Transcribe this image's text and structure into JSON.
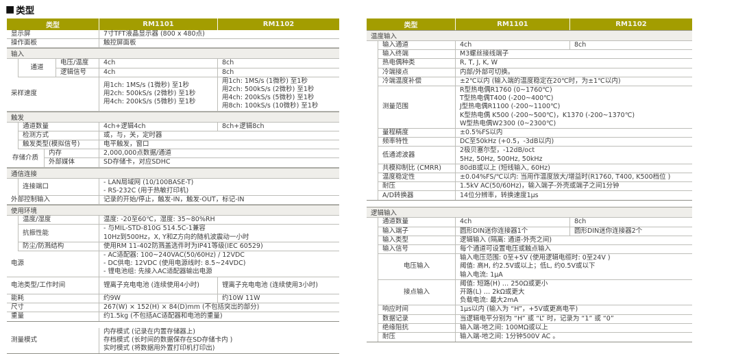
{
  "title": {
    "marker": "■",
    "text": "类型"
  },
  "colors": {
    "header_bg": "#a39d00",
    "header_text": "#f4f4ee",
    "section_bg": "#efeeea",
    "border": "#bdbdb8",
    "border_dark": "#8e8e86",
    "text": "#3b3b3b"
  },
  "tables": {
    "left_main": {
      "lw": 135,
      "v1": 173,
      "v2": 177,
      "ind": 17,
      "gw": 55,
      "header": [
        "类型",
        "RM1101",
        "RM1102"
      ],
      "rows": [
        {
          "l": "显示屏",
          "v": "7寸TFT液晶显示器 (800 x 480点)"
        },
        {
          "l": "操作面板",
          "v": "触控屏面板"
        },
        {
          "s": "输入"
        },
        {
          "g": "通道",
          "ind": 1,
          "sub": [
            {
              "l": "电压/温度",
              "v2": [
                "4ch",
                "8ch"
              ]
            },
            {
              "l": "逻辑信号",
              "v2": [
                "4ch",
                "8ch"
              ]
            }
          ]
        },
        {
          "l": "采样速度",
          "v2": [
            [
              "用1ch: 1MS/s (1微秒) 至1秒",
              "用2ch: 500kS/s (2微秒) 至1秒",
              "用4ch: 200kS/s (5微秒) 至1秒"
            ],
            [
              "用1ch: 1MS/s (1微秒) 至1秒",
              "用2ch: 500kS/s (2微秒) 至1秒",
              "用4ch: 200kS/s (5微秒) 至1秒",
              "用8ch: 100kS/s (10微秒) 至1秒"
            ]
          ]
        },
        {
          "s": "触发"
        },
        {
          "l": "通道数量",
          "ind": 1,
          "v2": [
            "4ch+逻辑4ch",
            "8ch+逻辑8ch"
          ]
        },
        {
          "l": "检测方式",
          "ind": 1,
          "v": "或，与，关，定时器"
        },
        {
          "l": "触发类型(模拟信号)",
          "ind": 1,
          "v": "电平触发，窗口"
        },
        {
          "g": "存储介质",
          "sub": [
            {
              "l": "内存",
              "v": "2,000,000点数据/通道"
            },
            {
              "l": "外部媒体",
              "v": "SD存储卡，对应SDHC"
            }
          ]
        },
        {
          "s": "通信连接"
        },
        {
          "l": "连接端口",
          "ind": 1,
          "v": [
            "- LAN局域网 (10/100BASE-T)",
            "- RS-232C (用于热敏打印机)"
          ]
        },
        {
          "l": "外部控制输入",
          "v": "记录的开始/停止，触发-IN，触发-OUT，标记-IN"
        },
        {
          "s": "使用环境"
        },
        {
          "l": "温度/湿度",
          "ind": 1,
          "v": "温度: -20至60℃，湿度: 35~80%RH"
        },
        {
          "l": "抗振性能",
          "ind": 1,
          "v": [
            "- 与MIL-STD-810G 514.5C-1兼容",
            "10Hz到500Hz，X, Y和Z方向的随机波震动一小时"
          ]
        },
        {
          "l": "防尘/防溅结构",
          "ind": 1,
          "v": "使用RM 11-402防溅盖选件时为IP41等级(IEC 60529)"
        },
        {
          "l": "电源",
          "v": [
            "- AC适配器: 100~240VAC(50/60Hz) / 12VDC",
            "- DC供电: 12VDC (使用电源线时: 8.5~24VDC)",
            "- 锂电池组: 先接入AC适配器输出电源"
          ]
        },
        {
          "l": "电池类型/工作时间",
          "h": 25,
          "v2": [
            "锂离子充电电池 (连续使用4小时)",
            "锂离子充电电池 (连续使用3小时)"
          ]
        },
        {
          "l": "能耗",
          "v2": [
            "约9W",
            "约10W 11W"
          ]
        },
        {
          "l": "尺寸",
          "v": "267(W) × 152(H) × 84(D)mm (不包括突出的部分)"
        },
        {
          "l": "重量",
          "v": "约1.5kg (不包括AC适配器和电池的重量)"
        }
      ]
    },
    "left_mode": {
      "lw": 135,
      "v1": 350,
      "v2": 0,
      "ind": 17,
      "gw": 55,
      "gap": true,
      "rows": [
        {
          "l": "测量模式",
          "v": [
            "内存模式 (记录在内置存储器上)",
            "存档模式 (长时间的数据保存在SD存储卡内 )",
            "实时模式 (将数据用外置打印机打印出)"
          ]
        }
      ]
    },
    "right_temp": {
      "lw": 130,
      "v1": 167,
      "v2": 178,
      "ind": 17,
      "gw": 55,
      "header": [
        "类型",
        "RM1101",
        "RM1102"
      ],
      "rows": [
        {
          "s": "温度输入"
        },
        {
          "l": "输入通道",
          "ind": 1,
          "v2": [
            "4ch",
            "8ch"
          ]
        },
        {
          "l": "输入终端",
          "ind": 1,
          "v": "M3螺丝接线端子"
        },
        {
          "l": "热电偶种类",
          "ind": 1,
          "v": "R, T, J, K, W"
        },
        {
          "l": "冷端接点",
          "ind": 1,
          "v": "内部/外部可切换。"
        },
        {
          "l": "冷端温度补偿",
          "ind": 1,
          "v": "±2℃以内 (输入端的温度稳定在20℃时，为±1℃以内)"
        },
        {
          "l": "测量范围",
          "ind": 1,
          "v": [
            "R型热电偶R1760 (0~1760℃)",
            "T型热电偶T400 (-200~400℃)",
            "J型热电偶R1100 (-200~1100℃)",
            "K型热电偶 K500 (-200~500℃)，K1370 (-200~1370℃)",
            "W型热电偶W2300 (0~2300℃)"
          ]
        },
        {
          "l": "量程精度",
          "ind": 1,
          "v": "±0.5%FS以内"
        },
        {
          "l": "频率特性",
          "ind": 1,
          "v": "DC至50kHz (+0.5，-3dB以内)"
        },
        {
          "l": "低通滤波器",
          "ind": 1,
          "v": [
            "2极贝塞尔型，-12dB/oct",
            "5Hz, 50Hz, 500Hz, 50kHz"
          ]
        },
        {
          "l": "共模抑制比 (CMRR)",
          "ind": 1,
          "v": "80dB或以上 (短线输入, 60Hz)"
        },
        {
          "l": "温度稳定性",
          "ind": 1,
          "v": "±0.04%FS/℃以内: 当用作温度放大/增益时(R1760, T400, K500档位 )"
        },
        {
          "l": "耐压",
          "ind": 1,
          "v": "1.5kV AC(50/60Hz)，输入端子-外壳或端子之间1分钟"
        },
        {
          "l": "A/D转换器",
          "ind": 1,
          "v": "14位分辨率，转换速度1μs"
        }
      ]
    },
    "right_logic": {
      "lw": 130,
      "v1": 167,
      "v2": 178,
      "ind": 17,
      "gw": 55,
      "gap": true,
      "rows": [
        {
          "s": "逻辑输入"
        },
        {
          "l": "通道数量",
          "ind": 1,
          "v2": [
            "4ch",
            "8ch"
          ]
        },
        {
          "l": "输入端子",
          "ind": 1,
          "v2": [
            "圆形DIN迷你连接器1个",
            "圆形DIN迷你连接器2个"
          ]
        },
        {
          "l": "输入类型",
          "ind": 1,
          "v": "逻辑输入 (隔离: 通道-外壳之间)"
        },
        {
          "l": "输入信号",
          "ind": 1,
          "v": "每个通道可设置电压或触点输入"
        },
        {
          "l": "电压输入",
          "ind": 1,
          "c": 1,
          "v": [
            "输入电压范围: 0至+5V (使用逻辑电缆时: 0至24V )",
            "阈值: 高H, 约2.5V或以上；低L, 约0.5V或以下",
            "输入电流: 1μA"
          ]
        },
        {
          "l": "接点输入",
          "ind": 1,
          "c": 1,
          "v": [
            "阈值: 短路(H) … 250Ω或更小",
            "开路(L) … 2kΩ或更大",
            "负载电流: 最大2mA"
          ]
        },
        {
          "l": "响应时间",
          "ind": 1,
          "v": "1μs以内 (输入为 “H”，+5V或更高电平)"
        },
        {
          "l": "数据记录",
          "ind": 1,
          "v": "当逻辑电平分别为 “H” 或 “L” 时，记录为 “1” 或 “0”"
        },
        {
          "l": "绝缘阻抗",
          "ind": 1,
          "v": "输入端-地之间: 100MΩ或以上"
        },
        {
          "l": "耐压",
          "ind": 1,
          "v": "输入端-地之间: 1分钟500V AC 。"
        }
      ]
    }
  }
}
